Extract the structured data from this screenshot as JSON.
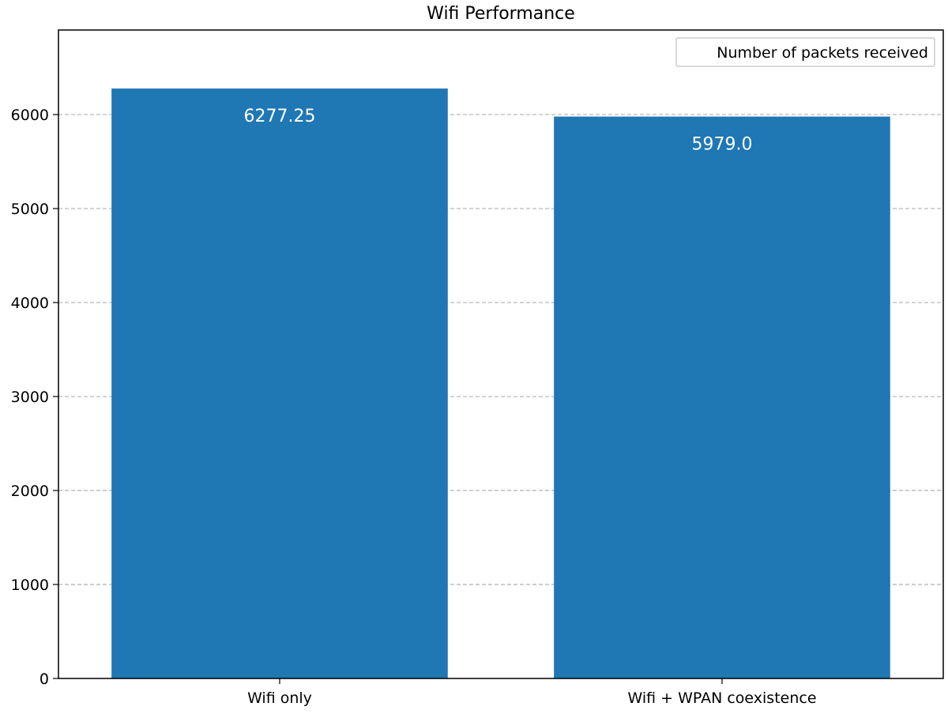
{
  "chart_data": {
    "type": "bar",
    "title": "Wifi Performance",
    "xlabel": "",
    "ylabel": "",
    "categories": [
      "Wifi only",
      "Wifi + WPAN coexistence"
    ],
    "series": [
      {
        "name": "Number of packets received",
        "values": [
          6277.25,
          5979.0
        ],
        "color": "#1f77b4"
      }
    ],
    "data_labels": [
      "6277.25",
      "5979.0"
    ],
    "ylim": [
      0,
      6900
    ],
    "yticks": [
      0,
      1000,
      2000,
      3000,
      4000,
      5000,
      6000
    ],
    "ytick_labels": [
      "0",
      "1000",
      "2000",
      "3000",
      "4000",
      "5000",
      "6000"
    ],
    "grid": {
      "axis": "y",
      "style": "dashed",
      "color": "#b0b0b0"
    },
    "legend": {
      "placement": "top-right",
      "entries": [
        "Number of packets received"
      ]
    },
    "data_label_color": "#ffffff"
  }
}
